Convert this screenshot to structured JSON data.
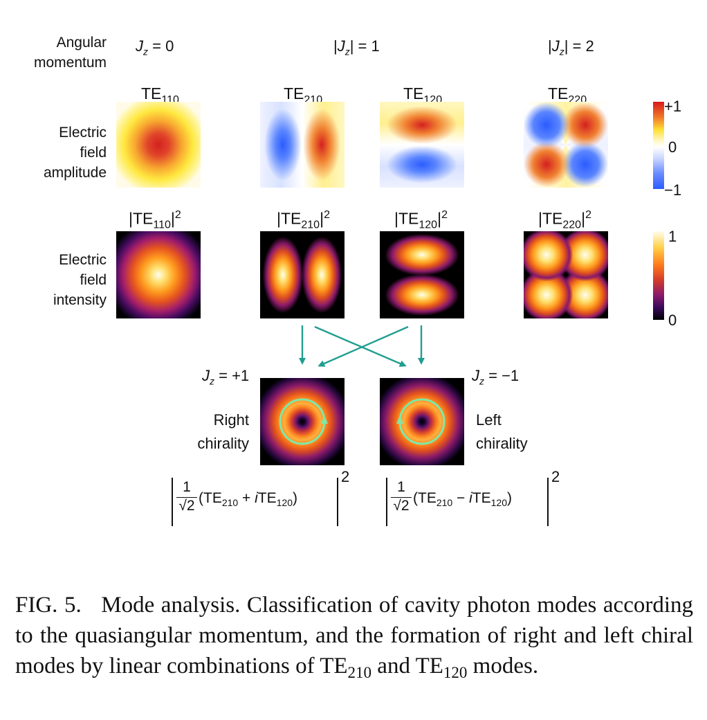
{
  "row_labels": {
    "angular_momentum": [
      "Angular",
      "momentum"
    ],
    "amplitude": [
      "Electric",
      "field",
      "amplitude"
    ],
    "intensity": [
      "Electric",
      "field",
      "intensity"
    ]
  },
  "momentum_headers": {
    "jz0": {
      "var": "J",
      "sub": "z",
      "rest": " = 0"
    },
    "jz1": {
      "pre": "|",
      "var": "J",
      "sub": "z",
      "rest": "| = 1"
    },
    "jz2": {
      "pre": "|",
      "var": "J",
      "sub": "z",
      "rest": "| = 2"
    }
  },
  "modes": [
    {
      "name": "TE",
      "sub": "110",
      "intensity_pre": "|TE",
      "intensity_post": "|",
      "sup": "2"
    },
    {
      "name": "TE",
      "sub": "210",
      "intensity_pre": "|TE",
      "intensity_post": "|",
      "sup": "2"
    },
    {
      "name": "TE",
      "sub": "120",
      "intensity_pre": "|TE",
      "intensity_post": "|",
      "sup": "2"
    },
    {
      "name": "TE",
      "sub": "220",
      "intensity_pre": "|TE",
      "intensity_post": "|",
      "sup": "2"
    }
  ],
  "amplitude_colorbar": {
    "max": "+1",
    "mid": "0",
    "min": "−1",
    "colors": [
      "#d7191c",
      "#ffe033",
      "#ffffff",
      "#2b5cff"
    ]
  },
  "intensity_colorbar": {
    "max": "1",
    "min": "0",
    "colors": [
      "#fffdf0",
      "#ffd24a",
      "#ff7a1a",
      "#b3206a",
      "#3a0a5a",
      "#000000"
    ]
  },
  "chiral": {
    "right": {
      "jz_var": "J",
      "jz_sub": "z",
      "jz_rest": " = +1",
      "label": [
        "Right",
        "chirality"
      ],
      "formula": {
        "num": "1",
        "den": "√2",
        "body": "(TE",
        "s1": "210",
        "op": " + ",
        "i": "i",
        "te2": "TE",
        "s2": "120",
        "close": ")",
        "sup": "2"
      }
    },
    "left": {
      "jz_var": "J",
      "jz_sub": "z",
      "jz_rest": " = −1",
      "label": [
        "Left",
        "chirality"
      ],
      "formula": {
        "num": "1",
        "den": "√2",
        "body": "(TE",
        "s1": "210",
        "op": " − ",
        "i": "i",
        "te2": "TE",
        "s2": "120",
        "close": ")",
        "sup": "2"
      }
    }
  },
  "arrow_color": "#1f9e8f",
  "ring_color": "#7ee8a6",
  "caption": {
    "fig": "FIG. 5.",
    "text1": "Mode analysis. Classification of cavity photon modes according to the quasiangular momentum, and the formation of right and left chiral modes by linear combinations of TE",
    "sub1": "210",
    "text2": " and TE",
    "sub2": "120",
    "text3": " modes."
  }
}
